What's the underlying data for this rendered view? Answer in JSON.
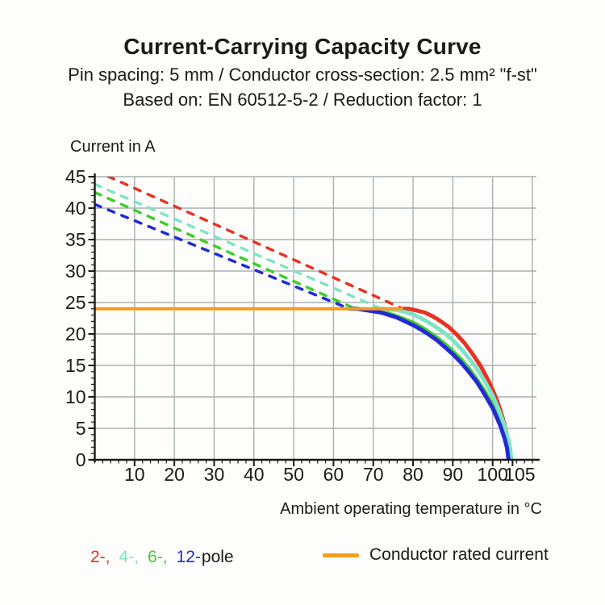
{
  "header": {
    "title": "Current-Carrying Capacity Curve",
    "subtitle1": "Pin spacing: 5 mm / Conductor cross-section: 2.5 mm² \"f-st\"",
    "subtitle2": "Based on: EN 60512-5-2 / Reduction factor: 1"
  },
  "chart_data": {
    "type": "line",
    "title": "Current-Carrying Capacity Curve",
    "xlabel": "Ambient operating temperature in °C",
    "ylabel": "Current in A",
    "xlim": [
      0,
      111
    ],
    "ylim": [
      0,
      45
    ],
    "x_major_ticks": [
      10,
      20,
      30,
      40,
      50,
      60,
      70,
      80,
      90,
      100,
      105
    ],
    "x_minor_step": 2,
    "y_major_ticks": [
      0,
      5,
      10,
      15,
      20,
      25,
      30,
      35,
      40,
      45
    ],
    "y_minor_step": 1,
    "grid": {
      "x_step": 10,
      "y_step": 5,
      "color": "#a9b1b0"
    },
    "text_color": "#1a1a1a",
    "rated_current": {
      "label": "Conductor rated current",
      "value": 24,
      "temp_start": 0,
      "temp_end": 77.5,
      "color": "#f59b1e"
    },
    "series": [
      {
        "name": "2-pole",
        "color": "#e63323",
        "dashed": [
          [
            0,
            46
          ],
          [
            77.5,
            24
          ]
        ],
        "solid": [
          [
            77.5,
            24
          ],
          [
            79,
            24
          ],
          [
            81,
            23.7
          ],
          [
            83,
            23.4
          ],
          [
            85,
            22.8
          ],
          [
            87,
            22
          ],
          [
            89,
            21.1
          ],
          [
            91,
            19.9
          ],
          [
            93,
            18.5
          ],
          [
            95,
            16.8
          ],
          [
            97,
            14.9
          ],
          [
            99,
            12.5
          ],
          [
            100,
            11.1
          ],
          [
            101,
            9.6
          ],
          [
            102,
            7.8
          ],
          [
            103,
            5.6
          ],
          [
            104,
            2.8
          ],
          [
            104.3,
            1.6
          ],
          [
            104.5,
            0
          ]
        ]
      },
      {
        "name": "4-pole",
        "color": "#7fe3c6",
        "dashed": [
          [
            0,
            43.8
          ],
          [
            72,
            24
          ]
        ],
        "solid": [
          [
            72,
            24
          ],
          [
            74,
            23.9
          ],
          [
            76,
            23.8
          ],
          [
            78,
            23.5
          ],
          [
            80,
            23.1
          ],
          [
            82,
            22.5
          ],
          [
            84,
            21.8
          ],
          [
            86,
            21
          ],
          [
            88,
            20.1
          ],
          [
            90,
            19
          ],
          [
            92,
            17.7
          ],
          [
            94,
            16.2
          ],
          [
            96,
            14.5
          ],
          [
            98,
            12.5
          ],
          [
            100,
            10.2
          ],
          [
            101,
            8.8
          ],
          [
            102,
            7.2
          ],
          [
            103,
            5.4
          ],
          [
            104,
            3.1
          ],
          [
            104.4,
            1.8
          ],
          [
            104.7,
            0
          ]
        ]
      },
      {
        "name": "6-pole",
        "color": "#3ecf2b",
        "dashed": [
          [
            0,
            42.5
          ],
          [
            65.5,
            24
          ]
        ],
        "solid": [
          [
            65.5,
            24
          ],
          [
            68,
            23.9
          ],
          [
            70,
            23.8
          ],
          [
            72,
            23.6
          ],
          [
            74,
            23.2
          ],
          [
            76,
            22.8
          ],
          [
            78,
            22.3
          ],
          [
            80,
            21.8
          ],
          [
            82,
            21.1
          ],
          [
            84,
            20.3
          ],
          [
            86,
            19.4
          ],
          [
            88,
            18.4
          ],
          [
            90,
            17.2
          ],
          [
            92,
            16
          ],
          [
            94,
            14.5
          ],
          [
            96,
            12.8
          ],
          [
            98,
            10.9
          ],
          [
            100,
            8.7
          ],
          [
            101,
            7.4
          ],
          [
            102,
            5.9
          ],
          [
            103,
            4.1
          ],
          [
            103.5,
            3
          ],
          [
            104,
            1.6
          ],
          [
            104.3,
            0
          ]
        ]
      },
      {
        "name": "12-pole",
        "color": "#2329d6",
        "dashed": [
          [
            0,
            40.6
          ],
          [
            64,
            24
          ]
        ],
        "solid": [
          [
            64,
            24
          ],
          [
            66,
            24
          ],
          [
            68,
            23.8
          ],
          [
            70,
            23.6
          ],
          [
            72,
            23.4
          ],
          [
            74,
            23
          ],
          [
            76,
            22.6
          ],
          [
            78,
            22
          ],
          [
            80,
            21.4
          ],
          [
            82,
            20.7
          ],
          [
            84,
            19.9
          ],
          [
            86,
            19
          ],
          [
            88,
            17.9
          ],
          [
            90,
            16.8
          ],
          [
            92,
            15.5
          ],
          [
            94,
            14
          ],
          [
            96,
            12.4
          ],
          [
            98,
            10.4
          ],
          [
            100,
            8.2
          ],
          [
            101,
            6.8
          ],
          [
            102,
            5.3
          ],
          [
            103,
            3.4
          ],
          [
            103.6,
            1.9
          ],
          [
            104,
            0
          ]
        ]
      }
    ]
  },
  "legend": {
    "pole_tokens": [
      {
        "text": "2-,",
        "color": "#e63323"
      },
      {
        "text": "4-,",
        "color": "#7fe3c6"
      },
      {
        "text": "6-,",
        "color": "#3ecf2b"
      },
      {
        "text": "12-",
        "color": "#2329d6"
      },
      {
        "text": "pole",
        "color": "#1a1a1a"
      }
    ],
    "rated_label": "Conductor rated current",
    "rated_color": "#f59b1e"
  }
}
